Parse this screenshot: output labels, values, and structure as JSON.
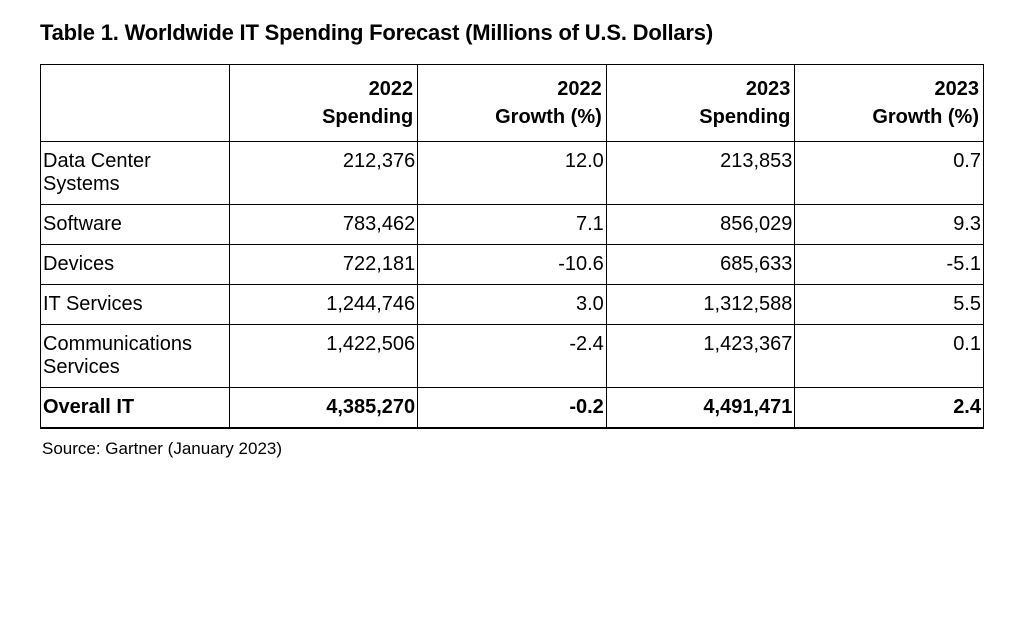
{
  "title": "Table 1. Worldwide IT Spending Forecast (Millions of U.S. Dollars)",
  "columns": [
    {
      "line1": "2022",
      "line2": "Spending"
    },
    {
      "line1": "2022",
      "line2": "Growth (%)"
    },
    {
      "line1": "2023",
      "line2": "Spending"
    },
    {
      "line1": "2023",
      "line2": "Growth (%)"
    }
  ],
  "rows": [
    {
      "label": "Data Center Systems",
      "cells": [
        "212,376",
        "12.0",
        "213,853",
        "0.7"
      ],
      "bold": false
    },
    {
      "label": "Software",
      "cells": [
        "783,462",
        "7.1",
        "856,029",
        "9.3"
      ],
      "bold": false
    },
    {
      "label": "Devices",
      "cells": [
        "722,181",
        "-10.6",
        "685,633",
        "-5.1"
      ],
      "bold": false
    },
    {
      "label": "IT Services",
      "cells": [
        "1,244,746",
        "3.0",
        "1,312,588",
        "5.5"
      ],
      "bold": false
    },
    {
      "label": "Communications Services",
      "cells": [
        "1,422,506",
        "-2.4",
        "1,423,367",
        "0.1"
      ],
      "bold": false
    },
    {
      "label": "Overall IT",
      "cells": [
        "4,385,270",
        "-0.2",
        "4,491,471",
        "2.4"
      ],
      "bold": true
    }
  ],
  "source": "Source: Gartner (January 2023)",
  "styling": {
    "background_color": "#ffffff",
    "border_color": "#000000",
    "title_fontsize": 22,
    "title_weight": 700,
    "cell_fontsize": 20,
    "source_fontsize": 17,
    "column_widths_pct": [
      20,
      20,
      20,
      20,
      20
    ],
    "row_label_align": "left",
    "numeric_align": "right"
  }
}
